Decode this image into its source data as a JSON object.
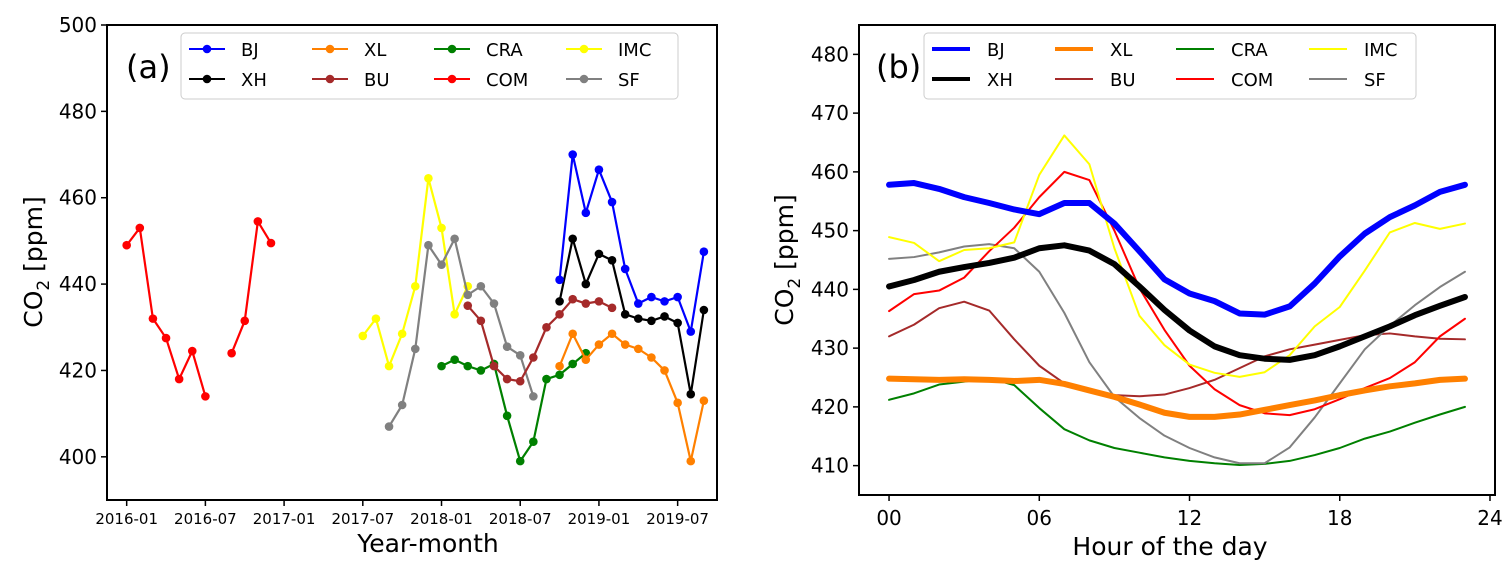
{
  "chart_data": [
    {
      "type": "line",
      "panel_label": "(a)",
      "xlabel": "Year-month",
      "ylabel": "CO",
      "ylabel_sub": "2",
      "ylabel_unit": " [ppm]",
      "ylim": [
        390,
        500
      ],
      "yticks": [
        400,
        420,
        440,
        460,
        480,
        500
      ],
      "xticks": [
        "2016-01",
        "2016-07",
        "2017-01",
        "2017-07",
        "2018-01",
        "2018-07",
        "2019-01",
        "2019-07"
      ],
      "xtick_index": [
        0,
        6,
        12,
        18,
        24,
        30,
        36,
        42
      ],
      "xlim_index": [
        -1.5,
        45
      ],
      "markers": true,
      "series": [
        {
          "name": "BJ",
          "color": "#0000ff",
          "start": 33,
          "values": [
            441,
            470,
            456.5,
            466.5,
            459,
            443.5,
            435.5,
            437,
            436,
            437,
            429,
            447.5
          ]
        },
        {
          "name": "XH",
          "color": "#000000",
          "start": 33,
          "values": [
            436,
            450.5,
            440,
            447,
            445.5,
            433,
            432,
            431.5,
            432.5,
            431,
            414.5,
            434
          ]
        },
        {
          "name": "XL",
          "color": "#ff8000",
          "start": 33,
          "values": [
            421,
            428.5,
            422.5,
            426,
            428.5,
            426,
            425,
            423,
            420,
            412.5,
            399,
            413
          ]
        },
        {
          "name": "BU",
          "color": "#a52a2a",
          "start": 26,
          "values": [
            435,
            431.5,
            421,
            418,
            417.5,
            423,
            430,
            433,
            436.5,
            435.5,
            436,
            434.5
          ]
        },
        {
          "name": "CRA",
          "color": "#008000",
          "start": 24,
          "values": [
            421,
            422.5,
            421,
            420,
            421.5,
            409.5,
            399,
            403.5,
            418,
            419,
            421.5,
            424
          ]
        },
        {
          "name": "COM",
          "color": "#ff0000",
          "start": 0,
          "values": [
            449,
            453,
            432,
            427.5,
            418,
            424.5,
            414,
            null,
            424,
            431.5,
            454.5,
            449.5
          ]
        },
        {
          "name": "IMC",
          "color": "#ffff00",
          "start": 18,
          "values": [
            428,
            432,
            421,
            428.5,
            439.5,
            464.5,
            453,
            433,
            439.5
          ]
        },
        {
          "name": "SF",
          "color": "#808080",
          "start": 20,
          "values": [
            407,
            412,
            425,
            449,
            444.5,
            450.5,
            437.5,
            439.5,
            435.5,
            425.5,
            423.5,
            414
          ]
        }
      ],
      "legend": {
        "position": "top-center",
        "entries": [
          "BJ",
          "XH",
          "XL",
          "BU",
          "CRA",
          "COM",
          "IMC",
          "SF"
        ]
      }
    },
    {
      "type": "line",
      "panel_label": "(b)",
      "xlabel": "Hour of the day",
      "ylabel": "CO",
      "ylabel_sub": "2",
      "ylabel_unit": " [ppm]",
      "ylim": [
        405,
        485
      ],
      "yticks": [
        410,
        420,
        430,
        440,
        450,
        460,
        470,
        480
      ],
      "xlim": [
        -1.2,
        24.2
      ],
      "xticks": [
        0,
        6,
        12,
        18,
        24
      ],
      "xtick_labels": [
        "00",
        "06",
        "12",
        "18",
        "24"
      ],
      "hours": [
        0,
        1,
        2,
        3,
        4,
        5,
        6,
        7,
        8,
        9,
        10,
        11,
        12,
        13,
        14,
        15,
        16,
        17,
        18,
        19,
        20,
        21,
        22,
        23
      ],
      "markers": false,
      "series": [
        {
          "name": "BJ",
          "color": "#0000ff",
          "thick": true,
          "values": [
            457.8,
            458.1,
            457.1,
            455.7,
            454.7,
            453.6,
            452.8,
            454.7,
            454.7,
            451.2,
            446.5,
            441.7,
            439.3,
            438.0,
            435.9,
            435.7,
            437.1,
            441.0,
            445.6,
            449.5,
            452.3,
            454.3,
            456.6,
            457.8
          ]
        },
        {
          "name": "XH",
          "color": "#000000",
          "thick": true,
          "values": [
            440.5,
            441.6,
            443.0,
            443.8,
            444.5,
            445.4,
            447.0,
            447.5,
            446.6,
            444.3,
            440.5,
            436.5,
            433.0,
            430.3,
            428.8,
            428.2,
            428.0,
            428.8,
            430.3,
            432.0,
            433.7,
            435.6,
            437.2,
            438.7
          ]
        },
        {
          "name": "XL",
          "color": "#ff8000",
          "thick": true,
          "values": [
            424.8,
            424.7,
            424.6,
            424.7,
            424.6,
            424.4,
            424.6,
            423.9,
            422.8,
            421.7,
            420.4,
            419.0,
            418.3,
            418.3,
            418.7,
            419.5,
            420.3,
            421.1,
            422.0,
            422.8,
            423.5,
            424.0,
            424.6,
            424.8
          ]
        },
        {
          "name": "BU",
          "color": "#a52a2a",
          "thick": false,
          "values": [
            432.0,
            434.0,
            436.8,
            437.9,
            436.4,
            431.5,
            427.0,
            424.0,
            422.7,
            422.0,
            421.8,
            422.1,
            423.2,
            424.6,
            426.6,
            428.6,
            429.8,
            430.6,
            431.4,
            432.2,
            432.5,
            432.0,
            431.6,
            431.5
          ]
        },
        {
          "name": "CRA",
          "color": "#008000",
          "thick": false,
          "values": [
            421.2,
            422.3,
            423.8,
            424.3,
            424.9,
            423.7,
            419.8,
            416.2,
            414.3,
            413.0,
            412.2,
            411.4,
            410.8,
            410.4,
            410.1,
            410.3,
            410.8,
            411.8,
            413.0,
            414.6,
            415.8,
            417.3,
            418.7,
            420.0
          ]
        },
        {
          "name": "COM",
          "color": "#ff0000",
          "thick": false,
          "values": [
            436.3,
            439.2,
            439.8,
            442.0,
            446.5,
            450.5,
            455.7,
            460.0,
            458.6,
            450.0,
            440.2,
            433.1,
            427.0,
            423.0,
            420.3,
            418.9,
            418.6,
            419.6,
            421.3,
            423.2,
            424.9,
            427.6,
            432.0,
            435.0
          ]
        },
        {
          "name": "IMC",
          "color": "#ffff00",
          "thick": false,
          "values": [
            448.9,
            447.9,
            444.8,
            446.7,
            447.0,
            448.0,
            459.5,
            466.2,
            461.3,
            447.0,
            435.5,
            430.5,
            427.2,
            425.8,
            425.1,
            425.9,
            428.8,
            433.7,
            437.0,
            443.2,
            449.7,
            451.3,
            450.3,
            451.2
          ]
        },
        {
          "name": "SF",
          "color": "#808080",
          "thick": false,
          "values": [
            445.2,
            445.5,
            446.3,
            447.3,
            447.7,
            447.0,
            443.0,
            436.0,
            427.6,
            421.7,
            418.1,
            415.1,
            413.0,
            411.4,
            410.4,
            410.4,
            413.1,
            418.2,
            424.0,
            429.8,
            433.8,
            437.3,
            440.4,
            443.0
          ]
        }
      ],
      "legend": {
        "position": "top-center",
        "entries": [
          "BJ",
          "XH",
          "XL",
          "BU",
          "CRA",
          "COM",
          "IMC",
          "SF"
        ]
      }
    }
  ]
}
